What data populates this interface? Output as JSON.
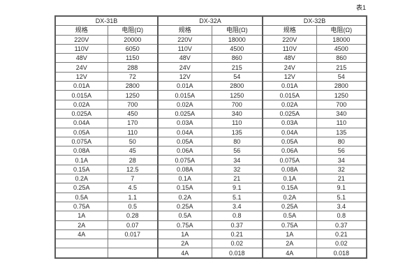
{
  "page": {
    "caption": "表1"
  },
  "colors": {
    "background": "#ffffff",
    "border": "#7a7a7a",
    "border_heavy": "#5a5a5a",
    "text": "#262626"
  },
  "table": {
    "groups": [
      {
        "label": "DX-31B"
      },
      {
        "label": "DX-32A"
      },
      {
        "label": "DX-32B"
      }
    ],
    "column_headers": {
      "spec": "规格",
      "resistance": "电阻(Ω)"
    },
    "rows": [
      [
        "220V",
        "20000",
        "220V",
        "18000",
        "220V",
        "18000"
      ],
      [
        "110V",
        "6050",
        "110V",
        "4500",
        "110V",
        "4500"
      ],
      [
        "48V",
        "1150",
        "48V",
        "860",
        "48V",
        "860"
      ],
      [
        "24V",
        "288",
        "24V",
        "215",
        "24V",
        "215"
      ],
      [
        "12V",
        "72",
        "12V",
        "54",
        "12V",
        "54"
      ],
      [
        "0.01A",
        "2800",
        "0.01A",
        "2800",
        "0.01A",
        "2800"
      ],
      [
        "0.015A",
        "1250",
        "0.015A",
        "1250",
        "0.015A",
        "1250"
      ],
      [
        "0.02A",
        "700",
        "0.02A",
        "700",
        "0.02A",
        "700"
      ],
      [
        "0.025A",
        "450",
        "0.025A",
        "340",
        "0.025A",
        "340"
      ],
      [
        "0.04A",
        "170",
        "0.03A",
        "110",
        "0.03A",
        "110"
      ],
      [
        "0.05A",
        "110",
        "0.04A",
        "135",
        "0.04A",
        "135"
      ],
      [
        "0.075A",
        "50",
        "0.05A",
        "80",
        "0.05A",
        "80"
      ],
      [
        "0.08A",
        "45",
        "0.06A",
        "56",
        "0.06A",
        "56"
      ],
      [
        "0.1A",
        "28",
        "0.075A",
        "34",
        "0.075A",
        "34"
      ],
      [
        "0.15A",
        "12.5",
        "0.08A",
        "32",
        "0.08A",
        "32"
      ],
      [
        "0.2A",
        "7",
        "0.1A",
        "21",
        "0.1A",
        "21"
      ],
      [
        "0.25A",
        "4.5",
        "0.15A",
        "9.1",
        "0.15A",
        "9.1"
      ],
      [
        "0.5A",
        "1.1",
        "0.2A",
        "5.1",
        "0.2A",
        "5.1"
      ],
      [
        "0.75A",
        "0.5",
        "0.25A",
        "3.4",
        "0.25A",
        "3.4"
      ],
      [
        "1A",
        "0.28",
        "0.5A",
        "0.8",
        "0.5A",
        "0.8"
      ],
      [
        "2A",
        "0.07",
        "0.75A",
        "0.37",
        "0.75A",
        "0.37"
      ],
      [
        "4A",
        "0.017",
        "1A",
        "0.21",
        "1A",
        "0.21"
      ],
      [
        "",
        "",
        "2A",
        "0.02",
        "2A",
        "0.02"
      ],
      [
        "",
        "",
        "4A",
        "0.018",
        "4A",
        "0.018"
      ]
    ]
  }
}
